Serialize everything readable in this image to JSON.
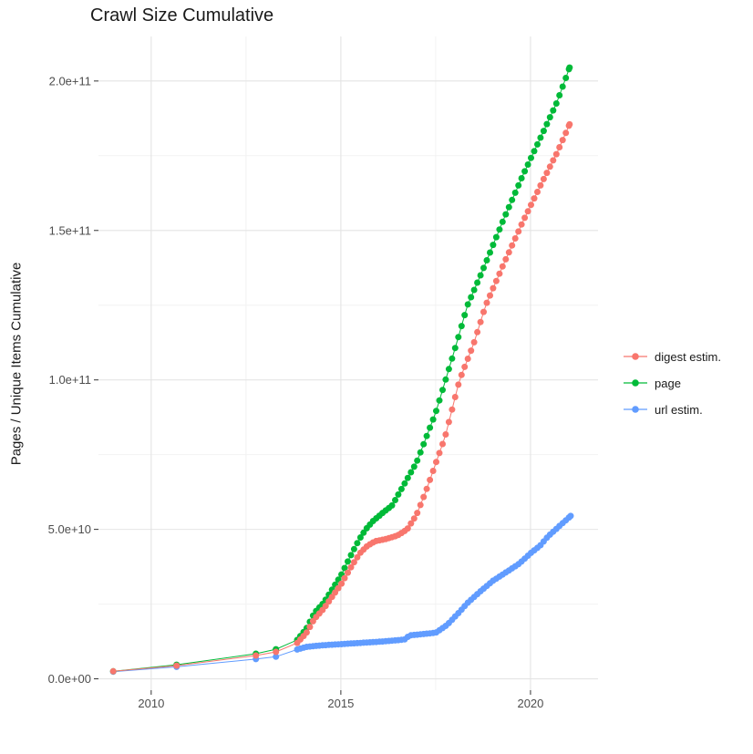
{
  "title": "Crawl Size Cumulative",
  "y_axis": {
    "label": "Pages / Unique Items Cumulative",
    "ticks": [
      {
        "label": "0.0e+00",
        "value_e9": 0
      },
      {
        "label": "5.0e+10",
        "value_e9": 50
      },
      {
        "label": "1.0e+11",
        "value_e9": 100
      },
      {
        "label": "1.5e+11",
        "value_e9": 150
      },
      {
        "label": "2.0e+11",
        "value_e9": 200
      }
    ]
  },
  "x_axis": {
    "ticks": [
      {
        "label": "2010",
        "value": 2010
      },
      {
        "label": "2015",
        "value": 2015
      },
      {
        "label": "2020",
        "value": 2020
      }
    ]
  },
  "legend": {
    "items": [
      {
        "label": "digest estim.",
        "color": "#F8766D"
      },
      {
        "label": "page",
        "color": "#00BA38"
      },
      {
        "label": "url estim.",
        "color": "#619CFF"
      }
    ]
  },
  "colors": {
    "digest": "#F8766D",
    "page": "#00BA38",
    "url": "#619CFF",
    "grid_major": "#E4E4E4",
    "grid_minor": "#F2F2F2",
    "tick_mark": "#333333",
    "tick_label": "#4d4d4d"
  },
  "chart_data": {
    "type": "scatter",
    "style": "line+point",
    "title": "Crawl Size Cumulative",
    "xlabel": "",
    "ylabel": "Pages / Unique Items Cumulative",
    "xlim": [
      2008.61,
      2021.78
    ],
    "ylim_e9": [
      -3.8,
      214.9
    ],
    "x_ticks": [
      2010,
      2015,
      2020
    ],
    "y_ticks_e9": [
      0,
      50,
      100,
      150,
      200
    ],
    "grid": "major+minor",
    "legend_position": "right",
    "y_unit_multiplier": 1000000000,
    "point_interval_years": 0.0833,
    "dense_from": 2013.85,
    "series": [
      {
        "name": "url estim.",
        "color": "#619CFF",
        "anchors_x": [
          2009.0,
          2010.67,
          2012.76,
          2013.29,
          2013.85,
          2014.1,
          2014.5,
          2015.0,
          2015.5,
          2016.0,
          2016.4,
          2016.7,
          2016.8,
          2017.1,
          2017.5,
          2017.8,
          2018.1,
          2018.35,
          2018.7,
          2019.0,
          2019.4,
          2019.7,
          2020.0,
          2020.25,
          2020.45,
          2020.84,
          2021.06
        ],
        "anchors_y_e9": [
          2.4,
          4.0,
          6.6,
          7.4,
          9.8,
          10.7,
          11.2,
          11.6,
          12.0,
          12.4,
          12.8,
          13.2,
          14.5,
          14.9,
          15.4,
          18.0,
          22.0,
          25.5,
          29.5,
          32.7,
          36.0,
          38.5,
          42.0,
          44.5,
          47.5,
          52.0,
          54.5
        ]
      },
      {
        "name": "page",
        "color": "#00BA38",
        "anchors_x": [
          2009.0,
          2010.67,
          2012.76,
          2013.29,
          2013.85,
          2014.1,
          2014.3,
          2014.55,
          2014.8,
          2015.0,
          2015.25,
          2015.5,
          2015.67,
          2015.85,
          2016.1,
          2016.35,
          2016.6,
          2016.8,
          2017.0,
          2017.5,
          2018.0,
          2018.34,
          2018.75,
          2019.3,
          2019.8,
          2020.3,
          2020.7,
          2021.03
        ],
        "anchors_y_e9": [
          2.5,
          4.7,
          8.4,
          9.9,
          13.0,
          17.0,
          22.0,
          25.5,
          30.5,
          34.5,
          41.0,
          47.0,
          50.2,
          52.8,
          55.5,
          58.0,
          63.5,
          68.0,
          72.5,
          89.0,
          110.0,
          125.0,
          137.0,
          154.0,
          168.5,
          182.0,
          193.0,
          204.5
        ]
      },
      {
        "name": "digest estim.",
        "color": "#F8766D",
        "anchors_x": [
          2009.0,
          2010.67,
          2012.76,
          2013.29,
          2013.85,
          2014.1,
          2014.3,
          2014.55,
          2014.8,
          2015.0,
          2015.25,
          2015.5,
          2015.7,
          2015.9,
          2016.2,
          2016.5,
          2016.75,
          2017.0,
          2017.25,
          2017.5,
          2017.75,
          2018.13,
          2018.5,
          2018.82,
          2019.3,
          2019.8,
          2020.3,
          2020.7,
          2021.03
        ],
        "anchors_y_e9": [
          2.5,
          4.4,
          7.8,
          9.0,
          12.0,
          15.5,
          20.0,
          23.5,
          28.0,
          31.5,
          37.0,
          42.0,
          44.5,
          46.0,
          46.8,
          48.0,
          50.0,
          55.0,
          63.0,
          72.0,
          81.0,
          100.0,
          112.0,
          125.0,
          139.0,
          153.0,
          166.0,
          176.0,
          185.5
        ]
      }
    ]
  }
}
